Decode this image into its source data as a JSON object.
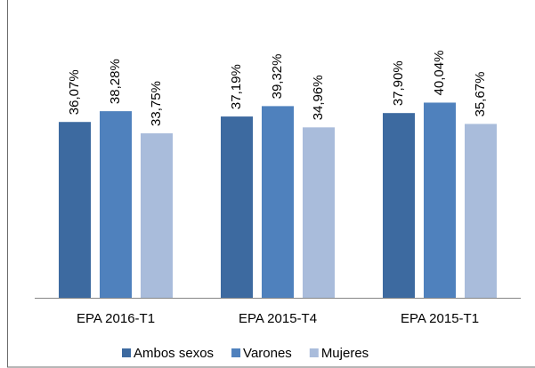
{
  "chart_data": {
    "type": "bar",
    "categories": [
      "EPA 2016-T1",
      "EPA 2015-T4",
      "EPA 2015-T1"
    ],
    "series": [
      {
        "name": "Ambos sexos",
        "color": "#3d6aa0",
        "values": [
          36.07,
          37.19,
          37.9
        ],
        "value_labels": [
          "36,07%",
          "37,19%",
          "37,90%"
        ]
      },
      {
        "name": "Varones",
        "color": "#4f81bd",
        "values": [
          38.28,
          39.32,
          40.04
        ],
        "value_labels": [
          "38,28%",
          "39,32%",
          "40,04%"
        ]
      },
      {
        "name": "Mujeres",
        "color": "#a9bcdb",
        "values": [
          33.75,
          34.96,
          35.67
        ],
        "value_labels": [
          "33,75%",
          "34,96%",
          "35,67%"
        ]
      }
    ],
    "ylim": [
      0,
      60
    ],
    "legend": "bottom"
  }
}
